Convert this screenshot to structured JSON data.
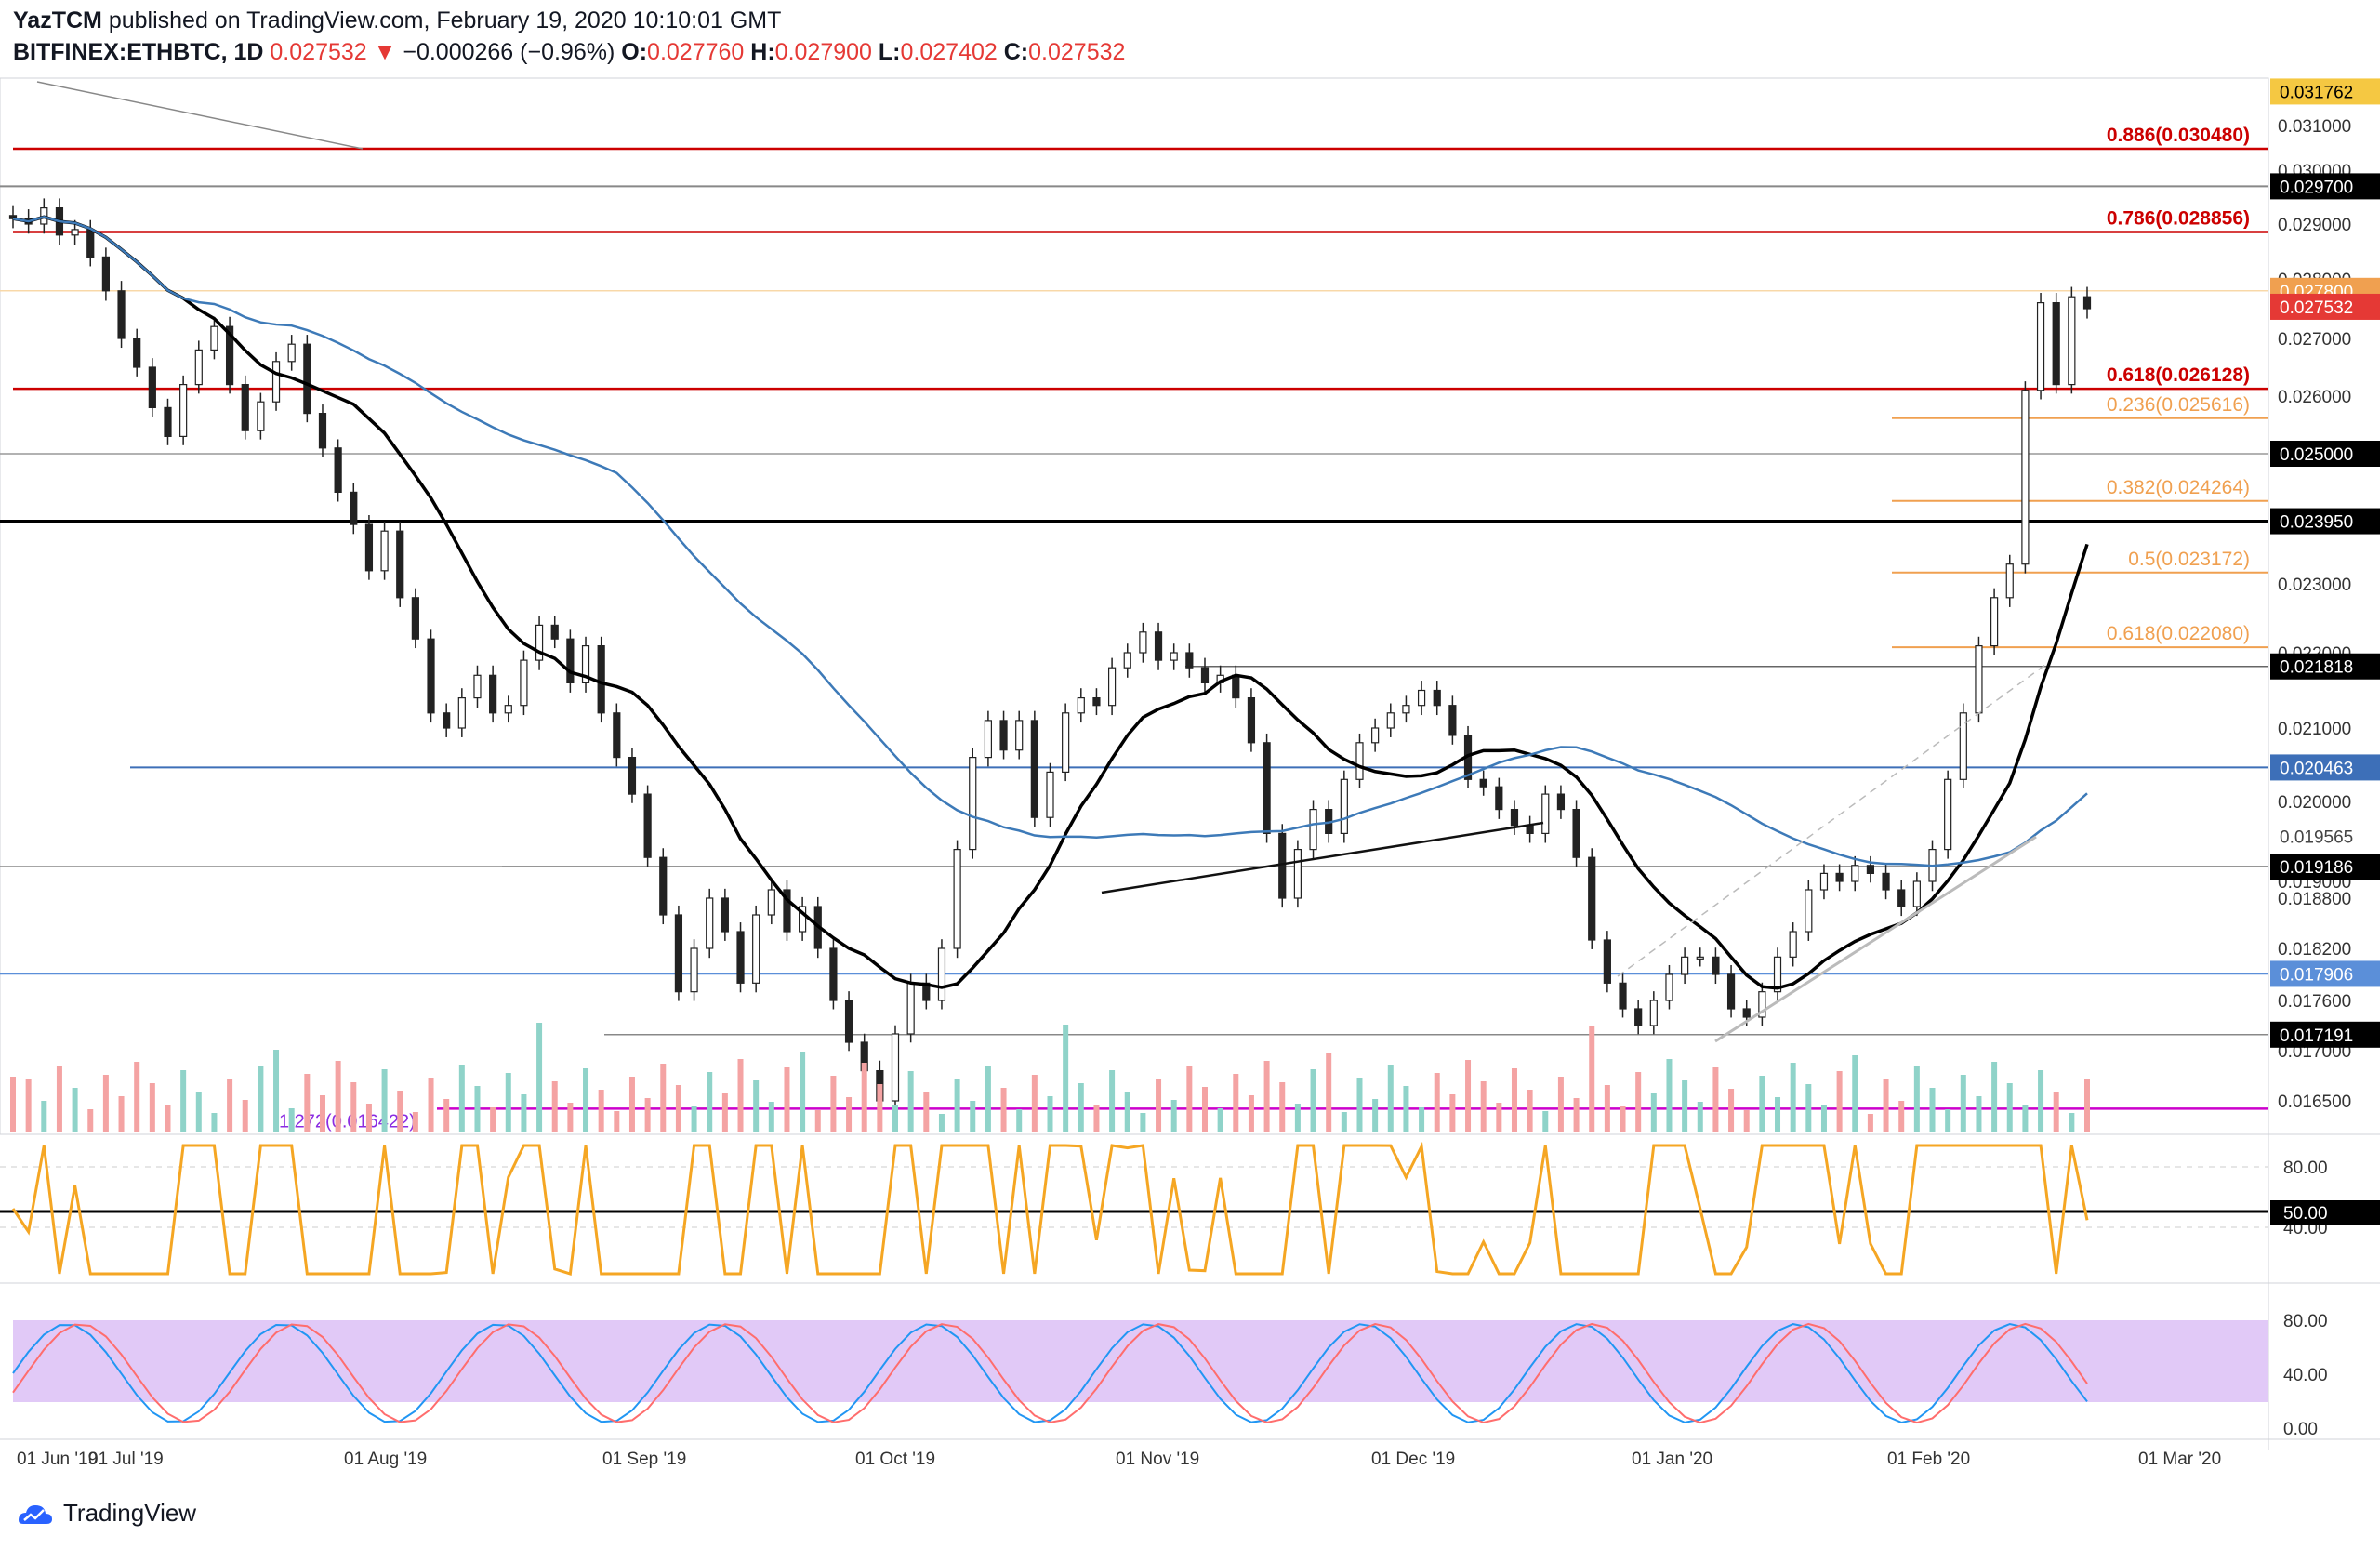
{
  "header": {
    "author": "YazTCM",
    "published_text": "published on TradingView.com, February 19, 2020 10:10:01 GMT",
    "symbol": "BITFINEX:ETHBTC, 1D",
    "price": "0.027532",
    "change": "−0.000266 (−0.96%)",
    "o_label": "O:",
    "o": "0.027760",
    "h_label": "H:",
    "h": "0.027900",
    "l_label": "L:",
    "l": "0.027402",
    "c_label": "C:",
    "c": "0.027532"
  },
  "brand": {
    "name": "TradingView"
  },
  "colors": {
    "up": "#26a69a",
    "down": "#ef5350",
    "ma100": "#000000",
    "ma200": "#3d7ab8",
    "resistance": "#cc0000",
    "fib": "#f0a050",
    "rsi": "#f5a623",
    "stoch_k": "#2196f3",
    "stoch_d": "#ff6d6d",
    "stoch_band": "#e1c9f7",
    "support_blue": "#3d6fb8"
  },
  "chart_data": {
    "type": "candlestick",
    "title": "",
    "x_ticks": [
      "01 Jun '19",
      "01 Jul '19",
      "01 Aug '19",
      "01 Sep '19",
      "01 Oct '19",
      "01 Nov '19",
      "01 Dec '19",
      "01 Jan '20",
      "01 Feb '20",
      "01 Mar '20"
    ],
    "price_axis": {
      "labels": [
        "0.031000",
        "0.030000",
        "0.029000",
        "0.028000",
        "0.027000",
        "0.026000",
        "0.025000",
        "0.024000",
        "0.023000",
        "0.022000",
        "0.021000",
        "0.020000",
        "0.019000",
        "0.018800",
        "0.018200",
        "0.017600",
        "0.017000",
        "0.016500"
      ],
      "highlighted": [
        {
          "text": "0.031762",
          "bg": "#f5c842",
          "fg": "#000000",
          "value": 0.031762
        },
        {
          "text": "0.029700",
          "bg": "#000000",
          "fg": "#ffffff",
          "value": 0.0297
        },
        {
          "text": "0.027800",
          "bg": "#f0a050",
          "fg": "#ffffff",
          "value": 0.0278
        },
        {
          "text": "0.027532",
          "bg": "#e53935",
          "fg": "#ffffff",
          "value": 0.027532
        },
        {
          "text": "0.025000",
          "bg": "#000000",
          "fg": "#ffffff",
          "value": 0.025
        },
        {
          "text": "0.023950",
          "bg": "#000000",
          "fg": "#ffffff",
          "value": 0.02395
        },
        {
          "text": "0.021818",
          "bg": "#000000",
          "fg": "#ffffff",
          "value": 0.021818
        },
        {
          "text": "0.020463",
          "bg": "#3d6fb8",
          "fg": "#ffffff",
          "value": 0.020463
        },
        {
          "text": "0.019565",
          "bg": "#ffffff",
          "fg": "#444444",
          "value": 0.019565
        },
        {
          "text": "0.019186",
          "bg": "#000000",
          "fg": "#ffffff",
          "value": 0.019186
        },
        {
          "text": "0.017906",
          "bg": "#5b8fd9",
          "fg": "#ffffff",
          "value": 0.017906
        },
        {
          "text": "0.017191",
          "bg": "#000000",
          "fg": "#ffffff",
          "value": 0.017191
        }
      ]
    },
    "levels": [
      {
        "label": "0.886(0.030480)",
        "value": 0.03048,
        "color": "#cc0000"
      },
      {
        "label": "0.786(0.028856)",
        "value": 0.028856,
        "color": "#cc0000"
      },
      {
        "label": "0.618(0.026128)",
        "value": 0.026128,
        "color": "#cc0000"
      },
      {
        "label": "0.236(0.025616)",
        "value": 0.025616,
        "color": "#f0a050"
      },
      {
        "label": "0.382(0.024264)",
        "value": 0.024264,
        "color": "#f0a050"
      },
      {
        "label": "0.5(0.023172)",
        "value": 0.023172,
        "color": "#f0a050"
      },
      {
        "label": "0.618(0.022080)",
        "value": 0.02208,
        "color": "#f0a050"
      },
      {
        "label": "1.272(0.016422)",
        "value": 0.016422,
        "color": "#cc00cc"
      }
    ],
    "candles_close": [
      0.0291,
      0.029,
      0.0293,
      0.0288,
      0.0289,
      0.0284,
      0.0278,
      0.027,
      0.0265,
      0.0258,
      0.0253,
      0.0262,
      0.0268,
      0.0272,
      0.0262,
      0.0254,
      0.0259,
      0.0266,
      0.0269,
      0.0257,
      0.0251,
      0.0244,
      0.0239,
      0.0232,
      0.0238,
      0.0228,
      0.0222,
      0.0212,
      0.021,
      0.0214,
      0.0217,
      0.0212,
      0.0213,
      0.0219,
      0.0224,
      0.0222,
      0.0216,
      0.0221,
      0.0212,
      0.0206,
      0.0201,
      0.0193,
      0.0186,
      0.0177,
      0.0182,
      0.0188,
      0.0184,
      0.0178,
      0.0186,
      0.0189,
      0.0184,
      0.0187,
      0.0182,
      0.0176,
      0.0171,
      0.0168,
      0.0165,
      0.0172,
      0.0178,
      0.0176,
      0.0182,
      0.0194,
      0.0206,
      0.0211,
      0.0207,
      0.0211,
      0.0198,
      0.0204,
      0.0212,
      0.0214,
      0.0213,
      0.0218,
      0.022,
      0.0223,
      0.0219,
      0.022,
      0.0218,
      0.0216,
      0.0217,
      0.0214,
      0.0208,
      0.0196,
      0.0188,
      0.0194,
      0.0199,
      0.0196,
      0.0203,
      0.0208,
      0.021,
      0.0212,
      0.0213,
      0.0215,
      0.0213,
      0.0209,
      0.0203,
      0.0202,
      0.0199,
      0.0197,
      0.0196,
      0.0201,
      0.0199,
      0.0193,
      0.0183,
      0.0178,
      0.0175,
      0.0173,
      0.0176,
      0.0179,
      0.0181,
      0.0181,
      0.0179,
      0.0175,
      0.0174,
      0.0177,
      0.0181,
      0.0184,
      0.0189,
      0.0191,
      0.019,
      0.0192,
      0.0191,
      0.0189,
      0.0187,
      0.019,
      0.0194,
      0.0203,
      0.0212,
      0.0221,
      0.0228,
      0.0233,
      0.0261,
      0.0276,
      0.0262,
      0.0277,
      0.0275
    ]
  }
}
